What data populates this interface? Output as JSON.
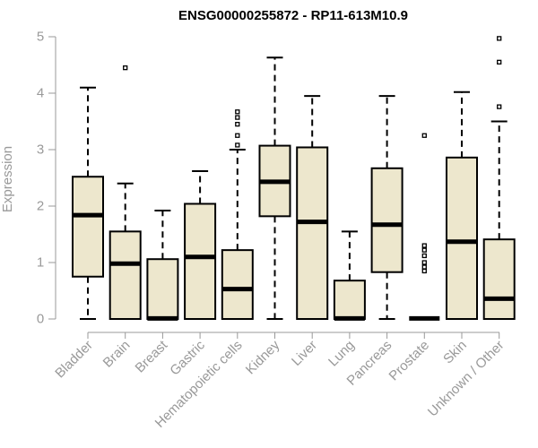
{
  "chart_data": {
    "type": "boxplot",
    "title": "ENSG00000255872 - RP11-613M10.9",
    "xlabel": "",
    "ylabel": "Expression",
    "ylim": [
      0,
      5
    ],
    "yticks": [
      0,
      1,
      2,
      3,
      4,
      5
    ],
    "box_color": "#ede7cd",
    "categories": [
      "Bladder",
      "Brain",
      "Breast",
      "Gastric",
      "Hematopoietic cells",
      "Kidney",
      "Liver",
      "Lung",
      "Pancreas",
      "Prostate",
      "Skin",
      "Unknown / Other"
    ],
    "boxes": [
      {
        "name": "Bladder",
        "whisker_low": 0,
        "q1": 0.75,
        "median": 1.84,
        "q3": 2.52,
        "whisker_high": 4.1,
        "outliers": []
      },
      {
        "name": "Brain",
        "whisker_low": 0,
        "q1": 0,
        "median": 0.98,
        "q3": 1.55,
        "whisker_high": 2.4,
        "outliers": [
          4.45
        ]
      },
      {
        "name": "Breast",
        "whisker_low": 0,
        "q1": 0,
        "median": 0.01,
        "q3": 1.06,
        "whisker_high": 1.92,
        "outliers": []
      },
      {
        "name": "Gastric",
        "whisker_low": 0,
        "q1": 0,
        "median": 1.1,
        "q3": 2.04,
        "whisker_high": 2.62,
        "outliers": []
      },
      {
        "name": "Hematopoietic cells",
        "whisker_low": 0,
        "q1": 0,
        "median": 0.53,
        "q3": 1.22,
        "whisker_high": 3.0,
        "outliers": [
          3.08,
          3.25,
          3.45,
          3.57,
          3.67
        ]
      },
      {
        "name": "Kidney",
        "whisker_low": 0,
        "q1": 1.82,
        "median": 2.43,
        "q3": 3.07,
        "whisker_high": 4.63,
        "outliers": []
      },
      {
        "name": "Liver",
        "whisker_low": 0,
        "q1": 0,
        "median": 1.72,
        "q3": 3.04,
        "whisker_high": 3.95,
        "outliers": []
      },
      {
        "name": "Lung",
        "whisker_low": 0,
        "q1": 0,
        "median": 0.01,
        "q3": 0.68,
        "whisker_high": 1.55,
        "outliers": []
      },
      {
        "name": "Pancreas",
        "whisker_low": 0,
        "q1": 0.83,
        "median": 1.67,
        "q3": 2.67,
        "whisker_high": 3.95,
        "outliers": []
      },
      {
        "name": "Prostate",
        "whisker_low": 0,
        "q1": 0,
        "median": 0.01,
        "q3": 0.01,
        "whisker_high": 0.01,
        "outliers": [
          0.85,
          0.92,
          1.0,
          1.12,
          1.22,
          1.3,
          3.25
        ]
      },
      {
        "name": "Skin",
        "whisker_low": 0,
        "q1": 0,
        "median": 1.37,
        "q3": 2.86,
        "whisker_high": 4.02,
        "outliers": []
      },
      {
        "name": "Unknown / Other",
        "whisker_low": 0,
        "q1": 0,
        "median": 0.36,
        "q3": 1.41,
        "whisker_high": 3.5,
        "outliers": [
          3.76,
          4.55,
          4.97
        ]
      }
    ]
  }
}
